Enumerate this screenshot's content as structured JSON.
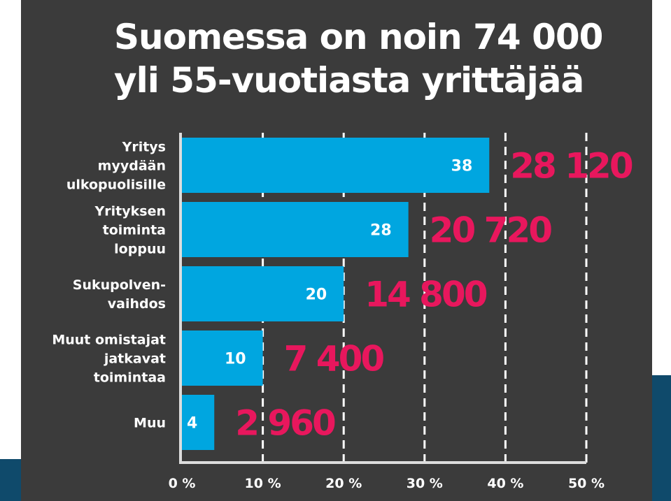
{
  "title_lines": [
    "Suomessa on noin 74 000",
    "yli 55-vuotiasta yrittäjää"
  ],
  "colors": {
    "background": "#3b3b3b",
    "bar": "#00a6e0",
    "count_label": "#e8175d",
    "text": "#ffffff",
    "decoration": "#0f4a6b"
  },
  "chart_data": {
    "type": "bar",
    "orientation": "horizontal",
    "title": "Suomessa on noin 74 000 yli 55-vuotiasta yrittäjää",
    "categories": [
      [
        "Yritys",
        "myydään",
        "ulkopuolisille"
      ],
      [
        "Yrityksen",
        "toiminta",
        "loppuu"
      ],
      [
        "Sukupolven-",
        "vaihdos"
      ],
      [
        "Muut omistajat",
        "jatkavat",
        "toimintaa"
      ],
      [
        "Muu"
      ]
    ],
    "values": [
      38,
      28,
      20,
      10,
      4
    ],
    "value_labels": [
      "38",
      "28",
      "20",
      "10",
      "4"
    ],
    "counts": [
      "28 120",
      "20 720",
      "14 800",
      "7 400",
      "2 960"
    ],
    "xlim": [
      0,
      50
    ],
    "ticks": [
      0,
      10,
      20,
      30,
      40,
      50
    ],
    "tick_labels": [
      "0 %",
      "10 %",
      "20 %",
      "30 %",
      "40 %",
      "50 %"
    ],
    "grid": "vertical-dashed"
  }
}
